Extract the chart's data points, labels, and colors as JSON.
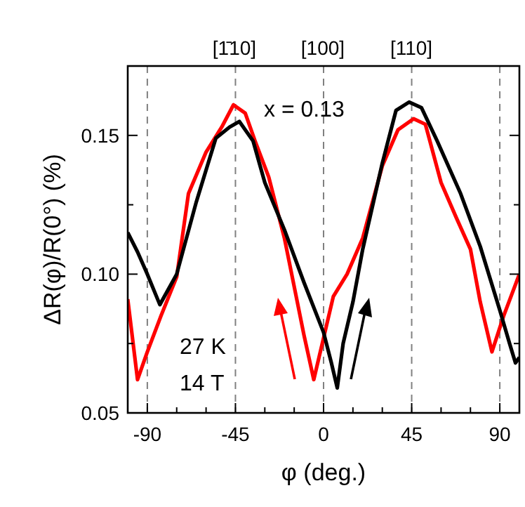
{
  "chart_data": {
    "type": "line",
    "xlabel": "φ (deg.)",
    "ylabel": "ΔR(φ)/R(0°) (%)",
    "x2label": null,
    "xlim": [
      -100,
      100
    ],
    "xticks": [
      -90,
      {
        "value": -75,
        "label": null
      },
      {
        "value": -60,
        "label": null
      },
      -45,
      {
        "value": -30,
        "label": null
      },
      {
        "value": -15,
        "label": null
      },
      0,
      {
        "value": 15,
        "label": null
      },
      {
        "value": 30,
        "label": null
      },
      45,
      {
        "value": 60,
        "label": null
      },
      {
        "value": 75,
        "label": null
      },
      90
    ],
    "ylim": [
      0.05,
      0.175
    ],
    "yticks": [
      {
        "value": 0.05,
        "label": "0.05"
      },
      {
        "value": 0.075,
        "label": null
      },
      {
        "value": 0.1,
        "label": "0.10"
      },
      {
        "value": 0.125,
        "label": null
      },
      {
        "value": 0.15,
        "label": "0.15"
      },
      {
        "value": 0.175,
        "label": null
      }
    ],
    "grid": false,
    "marker": "none",
    "line_style": "solid",
    "ref_lines": [
      {
        "axis": "x",
        "value": -90,
        "color": "#808080",
        "line_style": "dashed"
      },
      {
        "axis": "x",
        "value": -45,
        "color": "#808080",
        "line_style": "dashed"
      },
      {
        "axis": "x",
        "value": 0,
        "color": "#808080",
        "line_style": "dashed"
      },
      {
        "axis": "x",
        "value": 45,
        "color": "#808080",
        "line_style": "dashed"
      },
      {
        "axis": "x",
        "value": 90,
        "color": "#808080",
        "line_style": "dashed"
      }
    ],
    "annotations": [
      "[1̄10]",
      "[100]",
      "[110]",
      "x = 0.13",
      "27 K",
      "14 T"
    ],
    "series": [
      {
        "color": "#ff0000",
        "x": [
          -100,
          -95,
          -90,
          -83,
          -75,
          -69,
          -60,
          -52,
          -46,
          -40,
          -35,
          -28,
          -20,
          -16,
          -10,
          -5,
          0,
          5,
          12,
          20,
          30,
          38,
          46,
          52,
          60,
          68,
          75,
          80,
          86,
          92,
          100
        ],
        "values": [
          0.091,
          0.062,
          0.072,
          0.085,
          0.099,
          0.129,
          0.144,
          0.153,
          0.161,
          0.158,
          0.148,
          0.135,
          0.113,
          0.099,
          0.078,
          0.062,
          0.077,
          0.092,
          0.1,
          0.113,
          0.139,
          0.152,
          0.156,
          0.154,
          0.133,
          0.12,
          0.109,
          0.09,
          0.072,
          0.085,
          0.1
        ]
      },
      {
        "color": "#000000",
        "x": [
          -100,
          -95,
          -90,
          -83.6,
          -75,
          -65,
          -55,
          -48,
          -43,
          -36,
          -30,
          -20,
          -10,
          0,
          4,
          7,
          10,
          15,
          20,
          30,
          37,
          43.7,
          50,
          58,
          70,
          80,
          90,
          95,
          98,
          100
        ],
        "values": [
          0.115,
          0.108,
          0.1,
          0.089,
          0.1,
          0.126,
          0.149,
          0.153,
          0.155,
          0.148,
          0.133,
          0.116,
          0.097,
          0.079,
          0.068,
          0.059,
          0.075,
          0.09,
          0.109,
          0.14,
          0.159,
          0.162,
          0.16,
          0.148,
          0.129,
          0.11,
          0.087,
          0.075,
          0.068,
          0.07
        ]
      }
    ]
  }
}
